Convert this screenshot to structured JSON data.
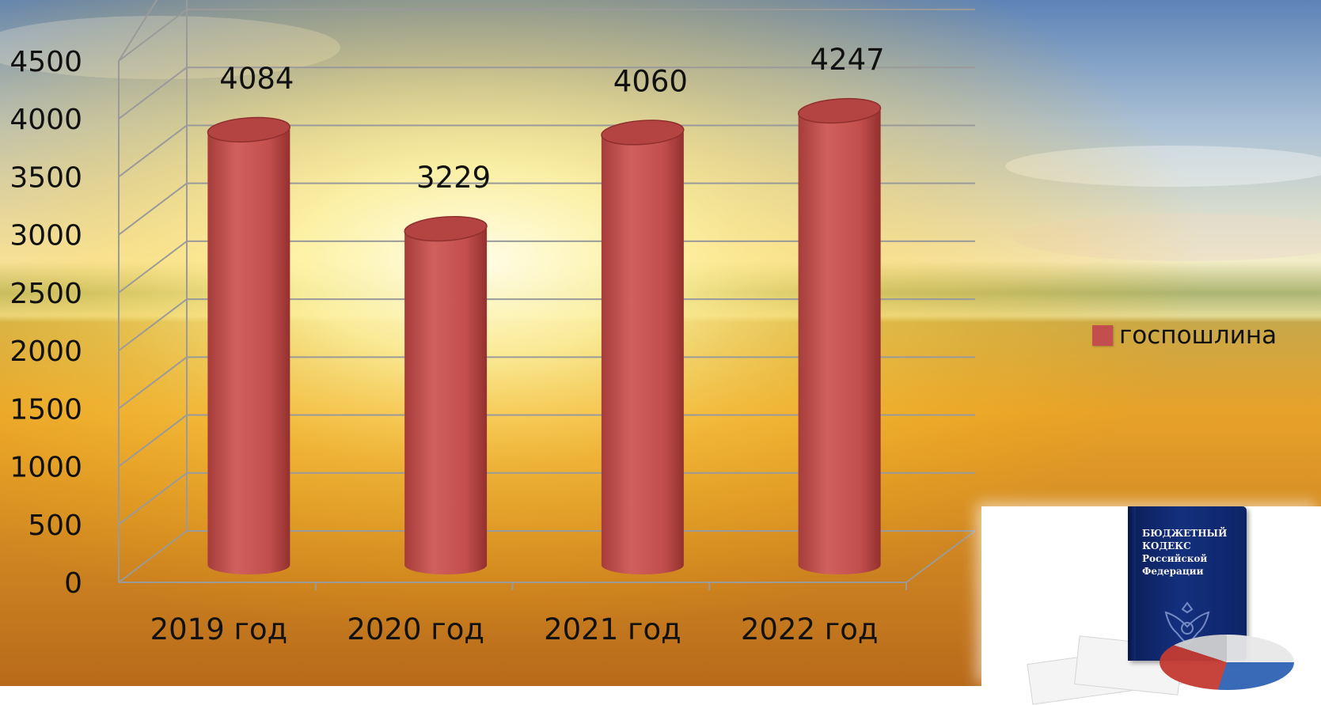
{
  "chart_data": {
    "type": "bar",
    "title": "",
    "xlabel": "",
    "ylabel": "",
    "categories": [
      "2019 год",
      "2020 год",
      "2021 год",
      "2022 год"
    ],
    "series": [
      {
        "name": "госпошлина",
        "values": [
          4084,
          3229,
          4060,
          4247
        ],
        "color": "#c24f4d"
      }
    ],
    "data_labels": [
      "4084",
      "3229",
      "4060",
      "4247"
    ],
    "y_ticks": [
      "0",
      "500",
      "1000",
      "1500",
      "2000",
      "2500",
      "3000",
      "3500",
      "4000",
      "4500"
    ],
    "ylim": [
      0,
      4500
    ],
    "grid": true,
    "legend_position": "right",
    "bar_shape": "cylinder-3d"
  },
  "legend": {
    "label": "госпошлина"
  },
  "decoration": {
    "book_title": "БЮДЖЕТНЫЙ\nКОДЕКС\nРоссийской\nФедерации"
  },
  "colors": {
    "bar": "#c24f4d",
    "bar_dark": "#8f2f2e",
    "bar_top": "#b44442",
    "grid": "#9a9a9a",
    "text": "#111111"
  }
}
